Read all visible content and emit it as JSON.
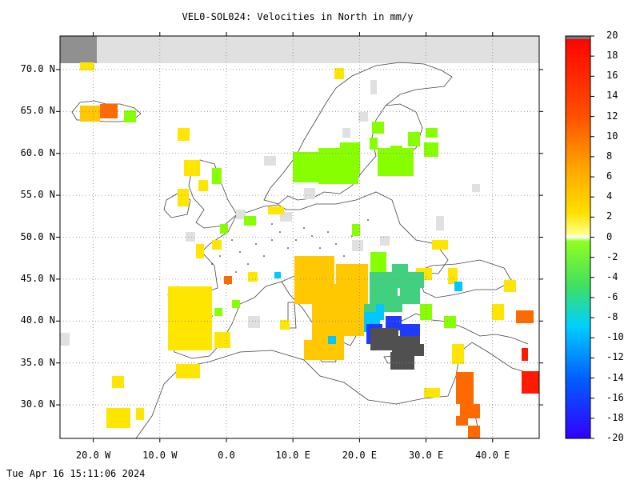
{
  "title": "VEL0-SOL024: Velocities in North in mm/y",
  "timestamp": "Tue Apr 16 15:11:06 2024",
  "map": {
    "lat_labels": [
      "70.0 N",
      "65.0 N",
      "60.0 N",
      "55.0 N",
      "50.0 N",
      "45.0 N",
      "40.0 N",
      "35.0 N",
      "30.0 N"
    ],
    "lat_values": [
      70,
      65,
      60,
      55,
      50,
      45,
      40,
      35,
      30
    ],
    "lon_labels": [
      "20.0 W",
      "10.0 W",
      "0.0",
      "10.0 E",
      "20.0 E",
      "30.0 E",
      "40.0 E"
    ],
    "lon_values": [
      -20,
      -10,
      0,
      10,
      20,
      30,
      40
    ],
    "lon_range": [
      -25,
      47
    ],
    "lat_range": [
      26,
      74
    ],
    "grid": "dotted"
  },
  "colorbar": {
    "labels": [
      "20",
      "18",
      "16",
      "14",
      "12",
      "10",
      "8",
      "6",
      "4",
      "2",
      "0",
      "-2",
      "-4",
      "-6",
      "-8",
      "-10",
      "-12",
      "-14",
      "-16",
      "-18",
      "-20"
    ],
    "range": [
      -20,
      20
    ],
    "colors": [
      "#ff0000",
      "#ff6000",
      "#ffb000",
      "#ffff00",
      "#ffffff",
      "#80ff00",
      "#00e0e0",
      "#0040ff",
      "#2000ff"
    ]
  },
  "colors": {
    "yellow": "#ffe600",
    "gold": "#ffc800",
    "orange": "#ff6a00",
    "red": "#ff1a00",
    "green": "#88ff00",
    "teal": "#40d0a0",
    "cyan": "#00c8ff",
    "blue": "#1f3bff",
    "gray": "#e0e0e0",
    "darkgray": "#505050"
  }
}
